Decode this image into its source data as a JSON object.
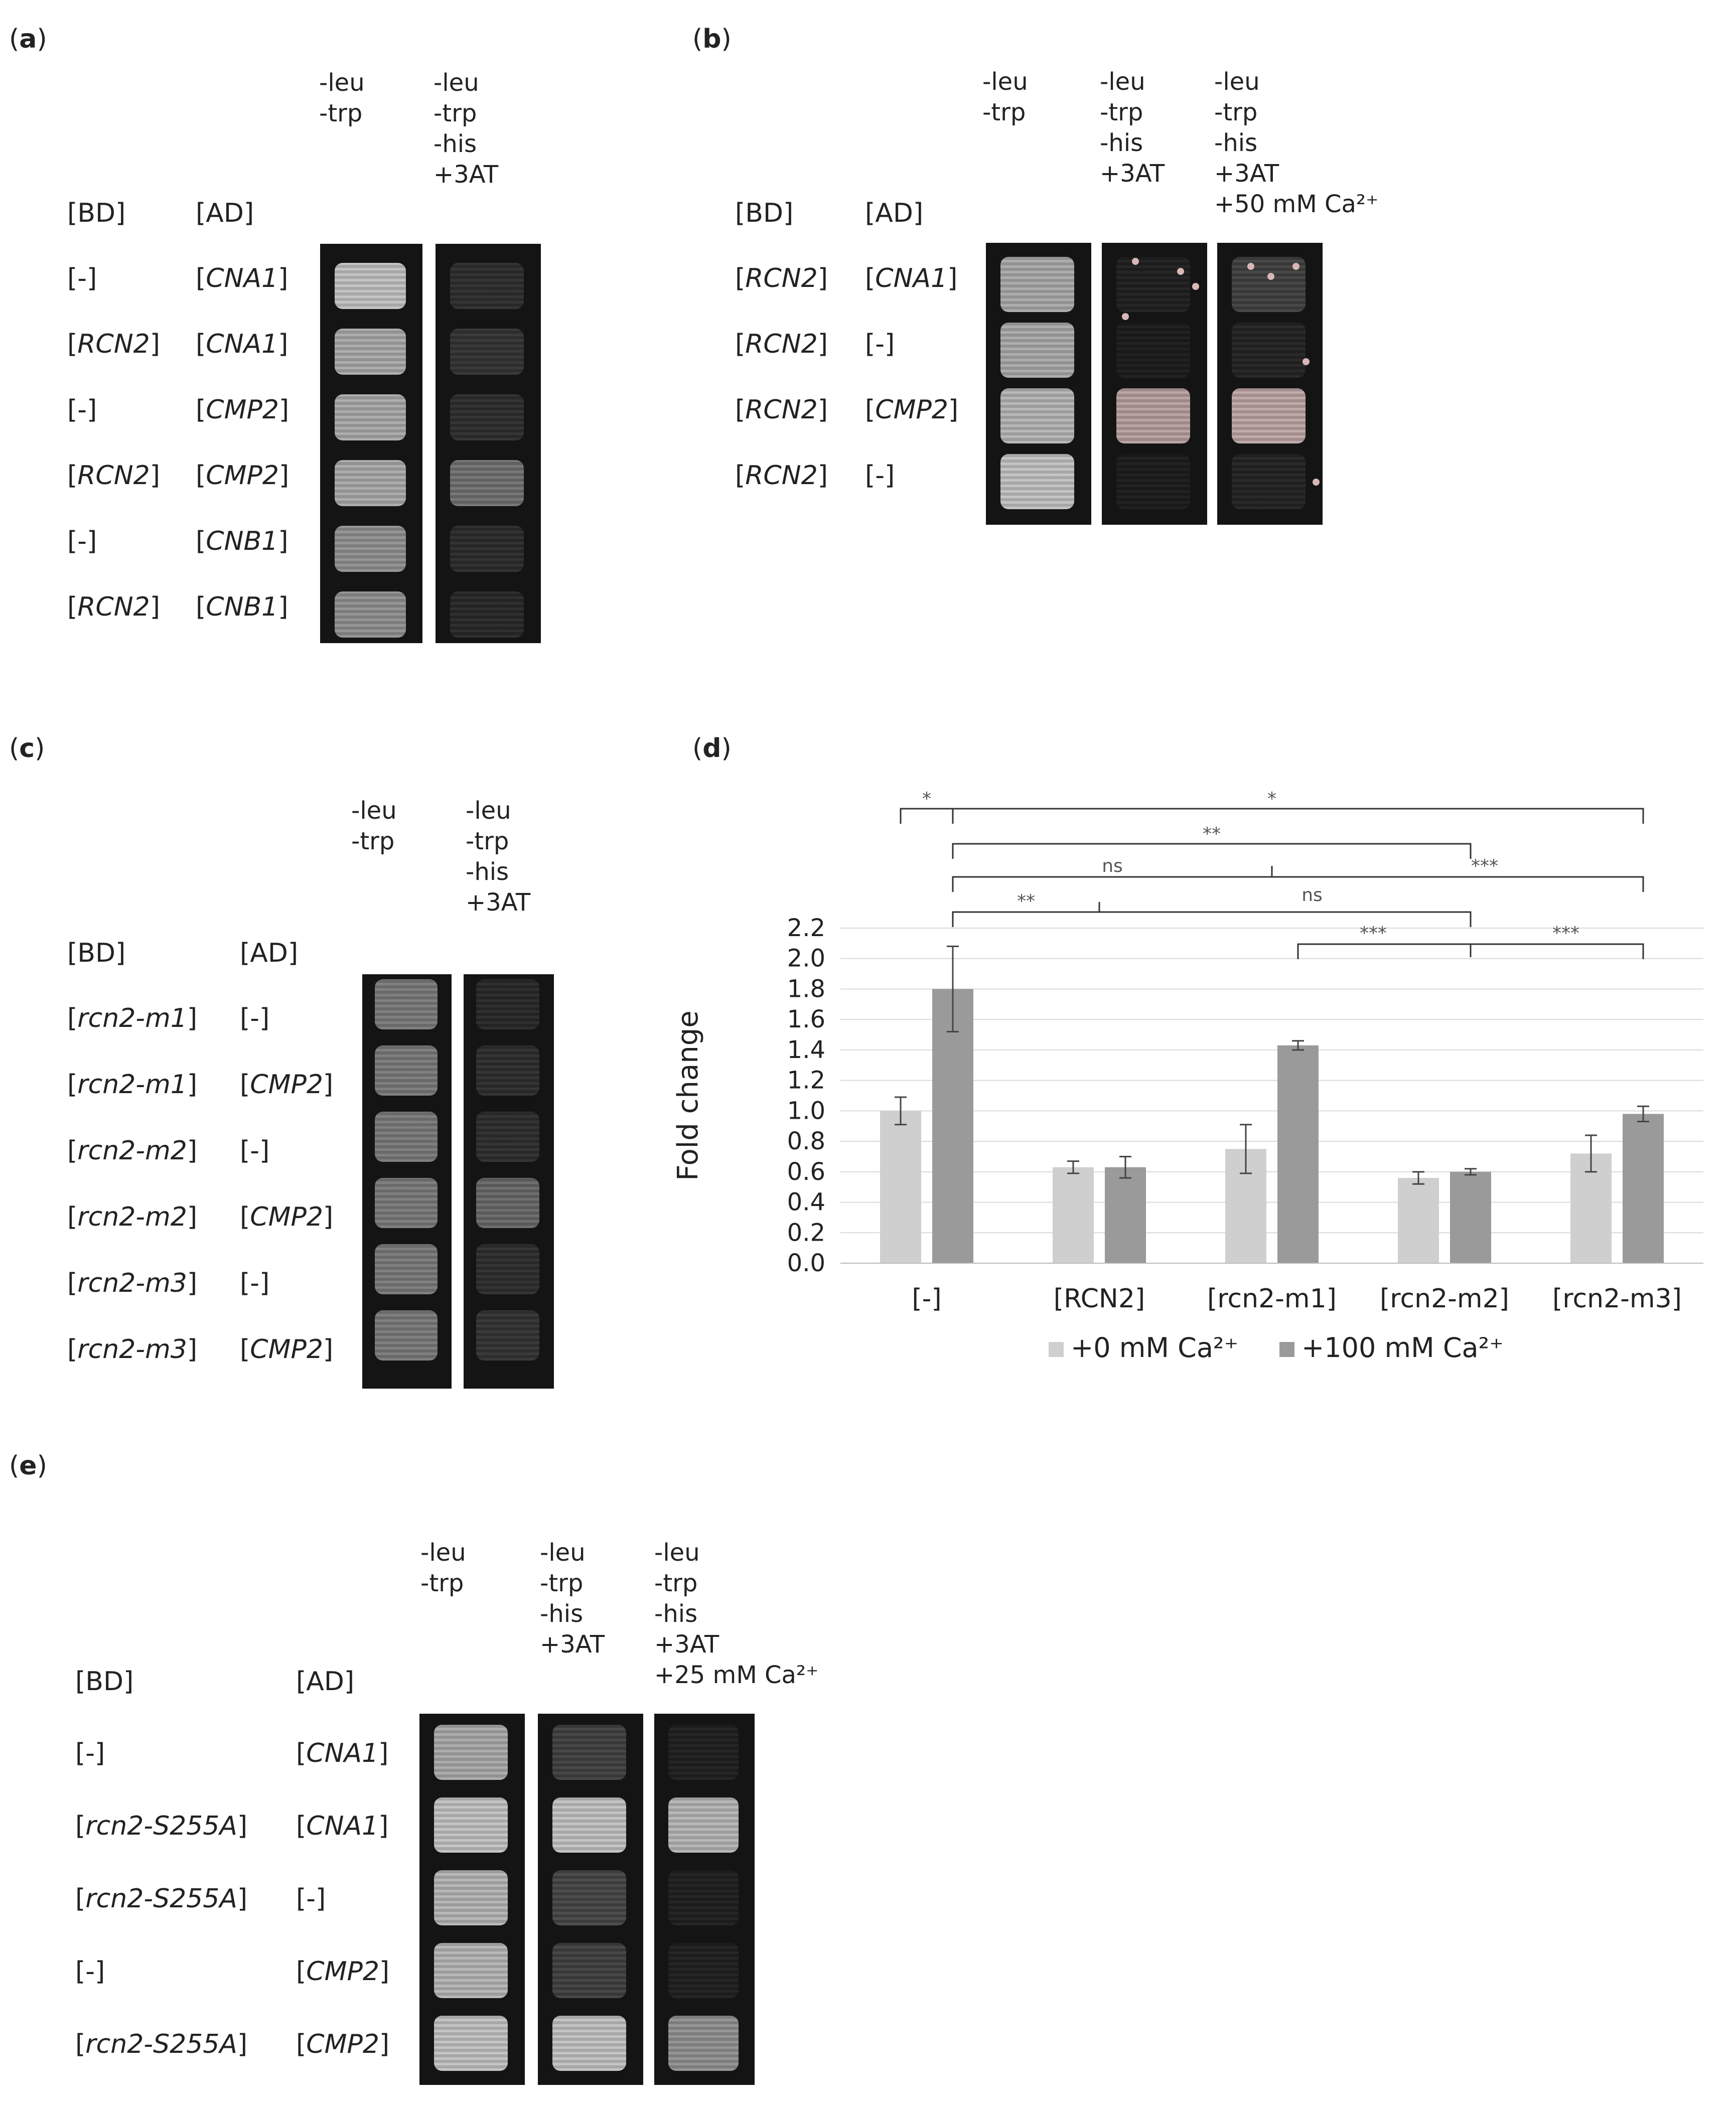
{
  "panel_a": {
    "label": "a",
    "col_heads": [
      "-leu\n-trp",
      "-leu\n-trp\n-his\n+3AT"
    ],
    "bd_head": "[BD]",
    "ad_head": "[AD]",
    "rows": [
      {
        "bd": "[-]",
        "ad": "CNA1"
      },
      {
        "bd": "RCN2",
        "ad": "CNA1"
      },
      {
        "bd": "[-]",
        "ad": "CMP2"
      },
      {
        "bd": "RCN2",
        "ad": "CMP2"
      },
      {
        "bd": "[-]",
        "ad": "CNB1"
      },
      {
        "bd": "RCN2",
        "ad": "CNB1"
      }
    ],
    "growth": [
      [
        1.0,
        0.2
      ],
      [
        0.9,
        0.25
      ],
      [
        0.9,
        0.2
      ],
      [
        0.9,
        0.65
      ],
      [
        0.8,
        0.18
      ],
      [
        0.8,
        0.15
      ]
    ]
  },
  "panel_b": {
    "label": "b",
    "col_heads": [
      "-leu\n-trp",
      "-leu\n-trp\n-his\n+3AT",
      "-leu\n-trp\n-his\n+3AT\n+50 mM Ca²⁺"
    ],
    "bd_head": "[BD]",
    "ad_head": "[AD]",
    "rows": [
      {
        "bd": "RCN2",
        "ad": "CNA1"
      },
      {
        "bd": "RCN2",
        "ad": "[-]"
      },
      {
        "bd": "RCN2",
        "ad": "CMP2"
      },
      {
        "bd": "RCN2",
        "ad": "[-]"
      }
    ],
    "growth": [
      [
        0.9,
        0.05,
        0.35
      ],
      [
        0.9,
        0.0,
        0.1
      ],
      [
        0.95,
        0.95,
        1.0
      ],
      [
        1.0,
        0.0,
        0.1
      ]
    ]
  },
  "panel_c": {
    "label": "c",
    "col_heads": [
      "-leu\n-trp",
      "-leu\n-trp\n-his\n+3AT"
    ],
    "bd_head": "[BD]",
    "ad_head": "[AD]",
    "rows": [
      {
        "bd": "rcn2-m1",
        "ad": "[-]"
      },
      {
        "bd": "rcn2-m1",
        "ad": "CMP2"
      },
      {
        "bd": "rcn2-m2",
        "ad": "[-]"
      },
      {
        "bd": "rcn2-m2",
        "ad": "CMP2"
      },
      {
        "bd": "rcn2-m3",
        "ad": "[-]"
      },
      {
        "bd": "rcn2-m3",
        "ad": "CMP2"
      }
    ],
    "growth": [
      [
        0.7,
        0.15
      ],
      [
        0.7,
        0.2
      ],
      [
        0.7,
        0.2
      ],
      [
        0.7,
        0.6
      ],
      [
        0.7,
        0.2
      ],
      [
        0.7,
        0.25
      ]
    ]
  },
  "panel_e": {
    "label": "e",
    "col_heads": [
      "-leu\n-trp",
      "-leu\n-trp\n-his\n+3AT",
      "-leu\n-trp\n-his\n+3AT\n+25 mM Ca²⁺"
    ],
    "bd_head": "[BD]",
    "ad_head": "[AD]",
    "rows": [
      {
        "bd": "[-]",
        "ad": "CNA1"
      },
      {
        "bd": "rcn2-S255A",
        "ad": "CNA1"
      },
      {
        "bd": "rcn2-S255A",
        "ad": "[-]"
      },
      {
        "bd": "[-]",
        "ad": "CMP2"
      },
      {
        "bd": "rcn2-S255A",
        "ad": "CMP2"
      }
    ],
    "growth": [
      [
        0.9,
        0.35,
        0.05
      ],
      [
        1.0,
        1.0,
        0.95
      ],
      [
        0.95,
        0.4,
        0.05
      ],
      [
        0.95,
        0.35,
        0.05
      ],
      [
        1.0,
        1.0,
        0.8
      ]
    ]
  },
  "chart_data": {
    "panel_label": "d",
    "type": "bar",
    "categories": [
      "[-]",
      "[RCN2]",
      "[rcn2-m1]",
      "[rcn2-m2]",
      "[rcn2-m3]"
    ],
    "series": [
      {
        "name": "+0 mM Ca²⁺",
        "color": "#cfcfcf",
        "values": [
          1.0,
          0.63,
          0.75,
          0.56,
          0.72
        ],
        "errors": [
          0.09,
          0.04,
          0.16,
          0.04,
          0.12
        ]
      },
      {
        "name": "+100 mM Ca²⁺",
        "color": "#9a9a9a",
        "values": [
          1.8,
          0.63,
          1.43,
          0.6,
          0.98
        ],
        "errors": [
          0.28,
          0.07,
          0.03,
          0.02,
          0.05
        ]
      }
    ],
    "ylabel": "Fold change",
    "ylim": [
      0,
      2.2
    ],
    "yticks": [
      "0.0",
      "0.2",
      "0.4",
      "0.6",
      "0.8",
      "1.0",
      "1.2",
      "1.4",
      "1.6",
      "1.8",
      "2.0",
      "2.2"
    ],
    "grid": true,
    "legend_position": "bottom",
    "significance": [
      {
        "from": 0,
        "to": 4,
        "label": "*",
        "note": "between -Ca and +Ca of [-] also *"
      },
      {
        "from": 0,
        "to": 3,
        "label": "**"
      },
      {
        "from": 0,
        "to": 4,
        "label": "***",
        "note": "ns at middle"
      },
      {
        "from": 0,
        "to": 1,
        "label": "**"
      },
      {
        "from": 2,
        "to": 3,
        "label": "***"
      },
      {
        "from": 3,
        "to": 4,
        "label": "***"
      }
    ],
    "annotations": [
      "*",
      "*",
      "**",
      "ns",
      "***",
      "**",
      "ns",
      "***",
      "***"
    ]
  }
}
